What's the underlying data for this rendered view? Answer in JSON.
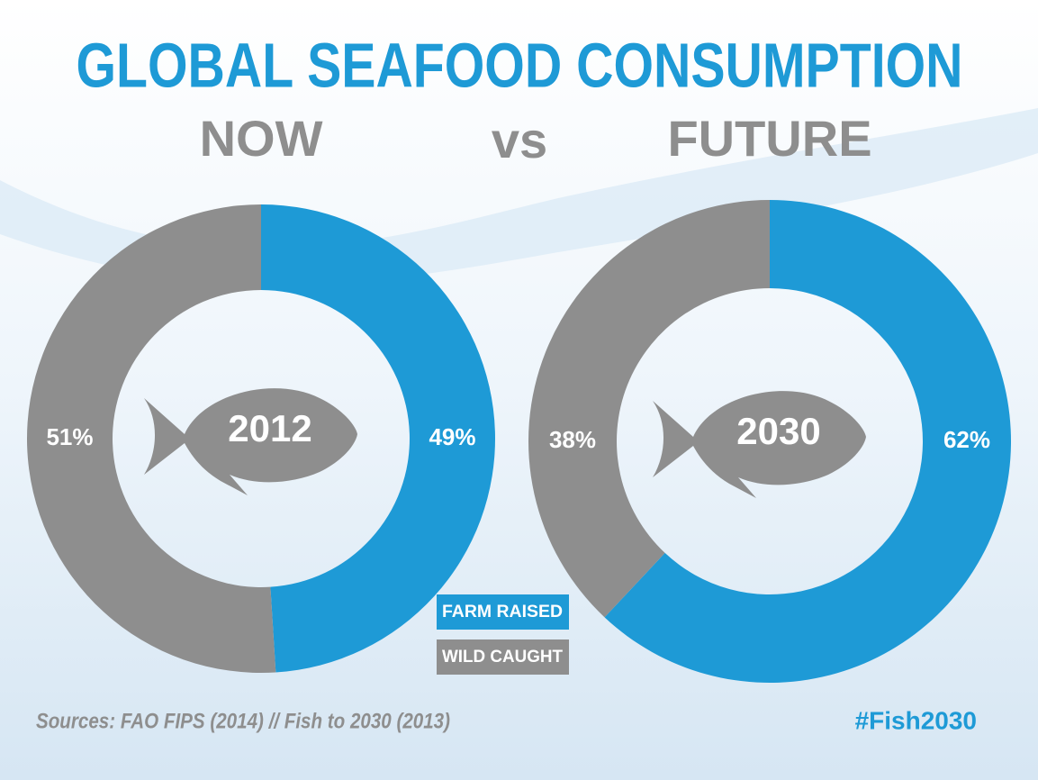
{
  "title": "GLOBAL SEAFOOD CONSUMPTION",
  "vs": "vs",
  "legend": [
    {
      "name": "FARM RAISED",
      "color": "#1e9ad6"
    },
    {
      "name": "WILD CAUGHT",
      "color": "#8e8e8e"
    }
  ],
  "chart_data": [
    {
      "type": "donut",
      "subtitle": "NOW",
      "center_label": "2012",
      "values": [
        49,
        51
      ],
      "value_labels": [
        "49%",
        "51%"
      ]
    },
    {
      "type": "donut",
      "subtitle": "FUTURE",
      "center_label": "2030",
      "values": [
        62,
        38
      ],
      "value_labels": [
        "62%",
        "38%"
      ]
    }
  ],
  "source": "Sources: FAO FIPS (2014) // Fish to 2030 (2013)",
  "hashtag": "#Fish2030"
}
